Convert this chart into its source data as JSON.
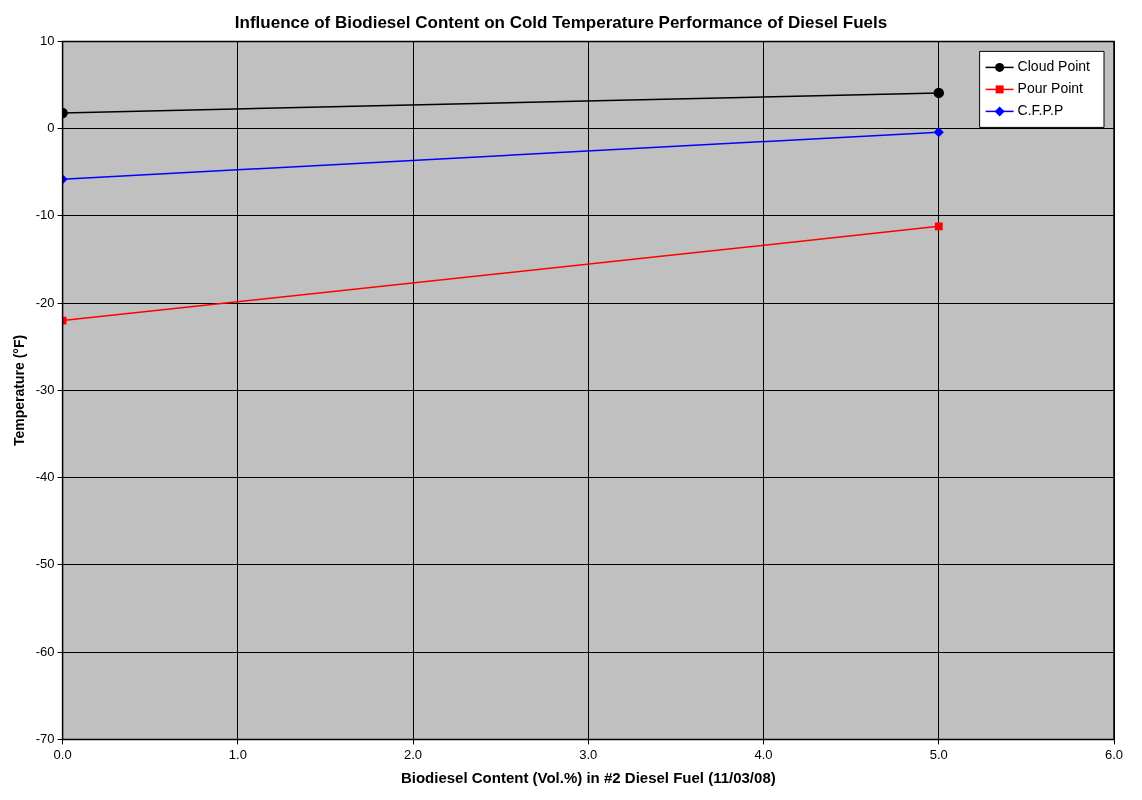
{
  "chart_data": {
    "type": "line",
    "title": "Influence of Biodiesel Content on Cold Temperature Performance of Diesel Fuels",
    "xlabel": "Biodiesel Content (Vol.%) in #2 Diesel Fuel (11/03/08)",
    "ylabel": "Temperature (°F)",
    "x": [
      0,
      5
    ],
    "series": [
      {
        "name": "Cloud Point",
        "color": "#000000",
        "marker": "circle",
        "values": [
          1.8,
          4.1
        ]
      },
      {
        "name": "Pour Point",
        "color": "#ff0000",
        "marker": "square",
        "values": [
          -22,
          -11.2
        ]
      },
      {
        "name": "C.F.P.P",
        "color": "#0000ff",
        "marker": "diamond",
        "values": [
          -5.8,
          -0.4
        ]
      }
    ],
    "xlim": [
      0,
      6
    ],
    "xticks": [
      {
        "value": 0,
        "label": "0.0"
      },
      {
        "value": 1,
        "label": "1.0"
      },
      {
        "value": 2,
        "label": "2.0"
      },
      {
        "value": 3,
        "label": "3.0"
      },
      {
        "value": 4,
        "label": "4.0"
      },
      {
        "value": 5,
        "label": "5.0"
      },
      {
        "value": 6,
        "label": "6.0"
      }
    ],
    "ylim": [
      -70,
      10
    ],
    "yticks": [
      -70,
      -60,
      -50,
      -40,
      -30,
      -20,
      -10,
      0,
      10
    ],
    "grid": true,
    "legend": "top right",
    "line_style": "solid"
  }
}
